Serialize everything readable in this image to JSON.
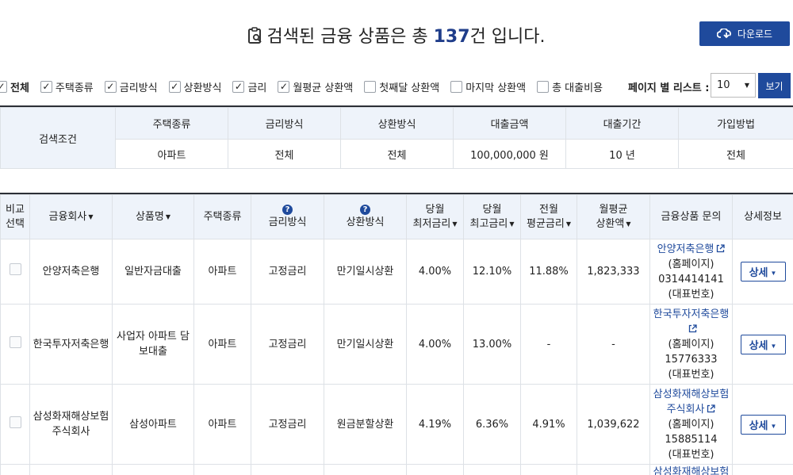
{
  "header": {
    "title_prefix": "검색된 금융 상품은 총 ",
    "count": "137",
    "title_suffix": "건 입니다.",
    "download_label": "다운로드"
  },
  "filters": [
    {
      "label": "전체",
      "checked": true
    },
    {
      "label": "주택종류",
      "checked": true
    },
    {
      "label": "금리방식",
      "checked": true
    },
    {
      "label": "상환방식",
      "checked": true
    },
    {
      "label": "금리",
      "checked": true
    },
    {
      "label": "월평균 상환액",
      "checked": true
    },
    {
      "label": "첫째달 상환액",
      "checked": false
    },
    {
      "label": "마지막 상환액",
      "checked": false
    },
    {
      "label": "총 대출비용",
      "checked": false
    }
  ],
  "per_page": {
    "label": "페이지 별 리스트 :",
    "value": "10",
    "view_label": "보기"
  },
  "conditions": {
    "row_label": "검색조건",
    "headers": [
      "주택종류",
      "금리방식",
      "상환방식",
      "대출금액",
      "대출기간",
      "가입방법"
    ],
    "values": [
      "아파트",
      "전체",
      "전체",
      "100,000,000 원",
      "10 년",
      "전체"
    ]
  },
  "results": {
    "headers": {
      "compare": [
        "비교",
        "선택"
      ],
      "company": "금융회사",
      "product": "상품명",
      "house_type": "주택종류",
      "rate_type": "금리방식",
      "repay_type": "상환방식",
      "min_rate": [
        "당월",
        "최저금리"
      ],
      "max_rate": [
        "당월",
        "최고금리"
      ],
      "avg_rate": [
        "전월",
        "평균금리"
      ],
      "monthly": [
        "월평균",
        "상환액"
      ],
      "inquiry": "금융상품 문의",
      "detail": "상세정보"
    },
    "rows": [
      {
        "company": "안양저축은행",
        "product": "일반자금대출",
        "house_type": "아파트",
        "rate_type": "고정금리",
        "repay_type": "만기일시상환",
        "min_rate": "4.00%",
        "max_rate": "12.10%",
        "avg_rate": "11.88%",
        "monthly": "1,823,333",
        "inq_name": "안양저축은행",
        "inq_home": "(홈페이지)",
        "inq_phone": "0314414141",
        "inq_rep": "(대표번호)",
        "detail_label": "상세"
      },
      {
        "company": "한국투자저축은행",
        "product": "사업자 아파트 담보대출",
        "house_type": "아파트",
        "rate_type": "고정금리",
        "repay_type": "만기일시상환",
        "min_rate": "4.00%",
        "max_rate": "13.00%",
        "avg_rate": "-",
        "monthly": "-",
        "inq_name": "한국투자저축은행",
        "inq_home": "(홈페이지)",
        "inq_phone": "15776333",
        "inq_rep": "(대표번호)",
        "detail_label": "상세"
      },
      {
        "company": "삼성화재해상보험주식회사",
        "product": "삼성아파트",
        "house_type": "아파트",
        "rate_type": "고정금리",
        "repay_type": "원금분할상환",
        "min_rate": "4.19%",
        "max_rate": "6.36%",
        "avg_rate": "4.91%",
        "monthly": "1,039,622",
        "inq_name": "삼성화재해상보험주식회사",
        "inq_home": "(홈페이지)",
        "inq_phone": "15885114",
        "inq_rep": "(대표번호)",
        "detail_label": "상세"
      },
      {
        "inq_name": "삼성화재해상보험"
      }
    ]
  },
  "icons": {
    "clipboard": "clipboard-search-icon",
    "download": "download-cloud-icon",
    "help": "question-circle-icon",
    "external": "external-link-icon"
  },
  "colors": {
    "primary": "#1f4a9c",
    "header_bg": "#eef3fa",
    "border_dark": "#2b2f36"
  }
}
